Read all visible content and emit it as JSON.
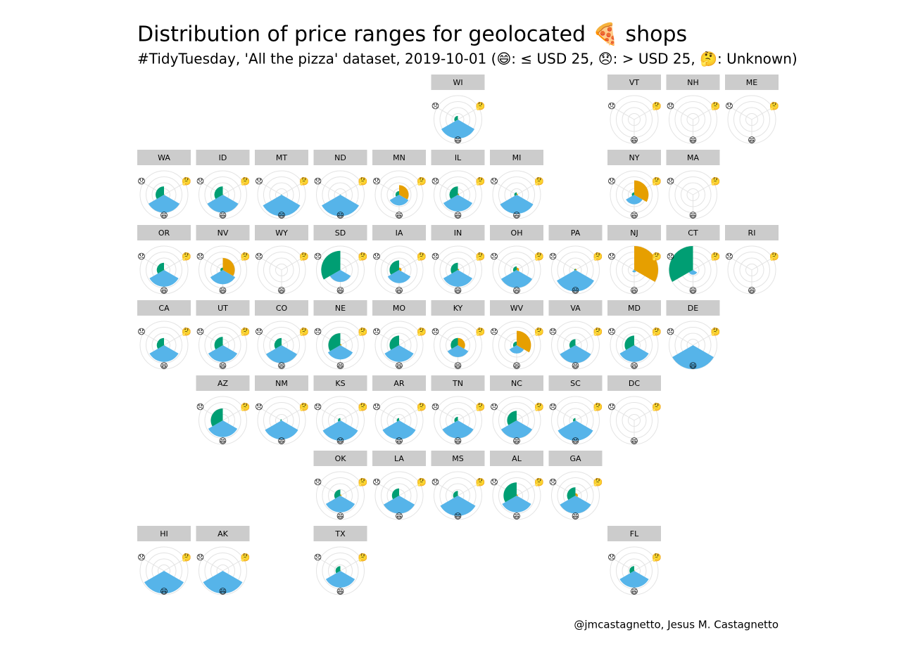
{
  "chart_data": {
    "type": "polar-facet",
    "title": "Distribution of price ranges for geolocated 🍕 shops",
    "subtitle": "#TidyTuesday, 'All the pizza' dataset, 2019-10-01 (😄: ≤ USD 25, 😞: > USD 25, 🤔: Unknown)",
    "caption": "@jmcastagnetto, Jesus M. Castagnetto",
    "categories": [
      "😄",
      "😞",
      "🤔"
    ],
    "colors": [
      "#56b4e9",
      "#009e73",
      "#e69f00"
    ],
    "rlim": [
      0,
      1
    ],
    "rticks": [
      0.25,
      0.5,
      0.75,
      1
    ],
    "facets": [
      {
        "name": "WI",
        "values": [
          0.8,
          0.15,
          0.02
        ]
      },
      {
        "name": "VT",
        "values": [
          0,
          0,
          0
        ]
      },
      {
        "name": "NH",
        "values": [
          0,
          0,
          0
        ]
      },
      {
        "name": "ME",
        "values": [
          0,
          0,
          0
        ]
      },
      {
        "name": "WA",
        "values": [
          0.75,
          0.35,
          0.02
        ]
      },
      {
        "name": "ID",
        "values": [
          0.75,
          0.35,
          0.02
        ]
      },
      {
        "name": "MT",
        "values": [
          0.9,
          0.02,
          0
        ]
      },
      {
        "name": "ND",
        "values": [
          0.9,
          0.02,
          0
        ]
      },
      {
        "name": "MN",
        "values": [
          0.45,
          0.15,
          0.4
        ]
      },
      {
        "name": "IL",
        "values": [
          0.7,
          0.35,
          0.05
        ]
      },
      {
        "name": "MI",
        "values": [
          0.8,
          0.1,
          0.05
        ]
      },
      {
        "name": "NY",
        "values": [
          0.4,
          0.1,
          0.6
        ]
      },
      {
        "name": "MA",
        "values": [
          0,
          0,
          0
        ]
      },
      {
        "name": "OR",
        "values": [
          0.7,
          0.3,
          0.02
        ]
      },
      {
        "name": "NV",
        "values": [
          0.6,
          0.1,
          0.5
        ]
      },
      {
        "name": "WY",
        "values": [
          0,
          0,
          0
        ]
      },
      {
        "name": "SD",
        "values": [
          0.5,
          0.8,
          0
        ]
      },
      {
        "name": "IA",
        "values": [
          0.55,
          0.4,
          0.1
        ]
      },
      {
        "name": "IN",
        "values": [
          0.7,
          0.3,
          0.05
        ]
      },
      {
        "name": "OH",
        "values": [
          0.75,
          0.15,
          0.1
        ]
      },
      {
        "name": "PA",
        "values": [
          0.9,
          0.05,
          0.05
        ]
      },
      {
        "name": "NJ",
        "values": [
          0.1,
          0.02,
          1.0
        ]
      },
      {
        "name": "CT",
        "values": [
          0.2,
          1.0,
          0
        ]
      },
      {
        "name": "RI",
        "values": [
          0,
          0,
          0
        ]
      },
      {
        "name": "CA",
        "values": [
          0.7,
          0.3,
          0.02
        ]
      },
      {
        "name": "UT",
        "values": [
          0.7,
          0.35,
          0.02
        ]
      },
      {
        "name": "CO",
        "values": [
          0.75,
          0.3,
          0.02
        ]
      },
      {
        "name": "NE",
        "values": [
          0.6,
          0.5,
          0.05
        ]
      },
      {
        "name": "MO",
        "values": [
          0.7,
          0.4,
          0.02
        ]
      },
      {
        "name": "KY",
        "values": [
          0.5,
          0.3,
          0.3
        ]
      },
      {
        "name": "WV",
        "values": [
          0.35,
          0.15,
          0.6
        ]
      },
      {
        "name": "VA",
        "values": [
          0.75,
          0.25,
          0.02
        ]
      },
      {
        "name": "MD",
        "values": [
          0.7,
          0.4,
          0.02
        ]
      },
      {
        "name": "DE",
        "values": [
          1.0,
          0,
          0
        ]
      },
      {
        "name": "AZ",
        "values": [
          0.7,
          0.5,
          0
        ]
      },
      {
        "name": "NM",
        "values": [
          0.8,
          0.05,
          0
        ]
      },
      {
        "name": "KS",
        "values": [
          0.85,
          0.1,
          0.02
        ]
      },
      {
        "name": "AR",
        "values": [
          0.8,
          0.1,
          0.02
        ]
      },
      {
        "name": "TN",
        "values": [
          0.75,
          0.15,
          0.02
        ]
      },
      {
        "name": "NC",
        "values": [
          0.75,
          0.4,
          0.02
        ]
      },
      {
        "name": "SC",
        "values": [
          0.85,
          0.1,
          0.02
        ]
      },
      {
        "name": "DC",
        "values": [
          0,
          0,
          0
        ]
      },
      {
        "name": "OK",
        "values": [
          0.7,
          0.25,
          0.05
        ]
      },
      {
        "name": "LA",
        "values": [
          0.75,
          0.3,
          0.02
        ]
      },
      {
        "name": "MS",
        "values": [
          0.85,
          0.2,
          0.02
        ]
      },
      {
        "name": "AL",
        "values": [
          0.7,
          0.55,
          0.05
        ]
      },
      {
        "name": "GA",
        "values": [
          0.75,
          0.35,
          0.1
        ]
      },
      {
        "name": "HI",
        "values": [
          0.95,
          0,
          0
        ]
      },
      {
        "name": "AK",
        "values": [
          0.95,
          0,
          0
        ]
      },
      {
        "name": "TX",
        "values": [
          0.7,
          0.2,
          0.02
        ]
      },
      {
        "name": "FL",
        "values": [
          0.7,
          0.2,
          0.02
        ]
      }
    ]
  }
}
